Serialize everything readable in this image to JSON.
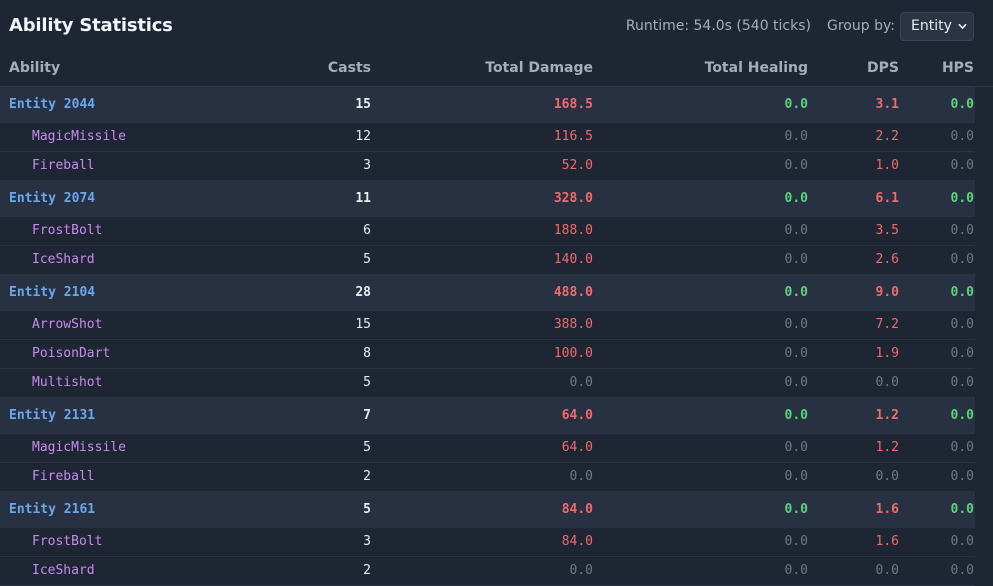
{
  "header": {
    "title": "Ability Statistics",
    "runtime": "Runtime: 54.0s (540 ticks)",
    "group_by_label": "Group by:",
    "group_by_value": "Entity"
  },
  "columns": {
    "ability": "Ability",
    "casts": "Casts",
    "total_damage": "Total Damage",
    "total_healing": "Total Healing",
    "dps": "DPS",
    "hps": "HPS"
  },
  "colors": {
    "entity_name": "#6aa7ee",
    "ability_name": "#c78bf0",
    "damage": "#ef6b6b",
    "healing": "#5cd37a",
    "zero": "#6e7785"
  },
  "rows": [
    {
      "type": "group",
      "name": "Entity 2044",
      "casts": "15",
      "damage": "168.5",
      "healing": "0.0",
      "dps": "3.1",
      "hps": "0.0"
    },
    {
      "type": "child",
      "name": "MagicMissile",
      "casts": "12",
      "damage": "116.5",
      "healing": "0.0",
      "dps": "2.2",
      "hps": "0.0"
    },
    {
      "type": "child",
      "name": "Fireball",
      "casts": "3",
      "damage": "52.0",
      "healing": "0.0",
      "dps": "1.0",
      "hps": "0.0"
    },
    {
      "type": "group",
      "name": "Entity 2074",
      "casts": "11",
      "damage": "328.0",
      "healing": "0.0",
      "dps": "6.1",
      "hps": "0.0"
    },
    {
      "type": "child",
      "name": "FrostBolt",
      "casts": "6",
      "damage": "188.0",
      "healing": "0.0",
      "dps": "3.5",
      "hps": "0.0"
    },
    {
      "type": "child",
      "name": "IceShard",
      "casts": "5",
      "damage": "140.0",
      "healing": "0.0",
      "dps": "2.6",
      "hps": "0.0"
    },
    {
      "type": "group",
      "name": "Entity 2104",
      "casts": "28",
      "damage": "488.0",
      "healing": "0.0",
      "dps": "9.0",
      "hps": "0.0"
    },
    {
      "type": "child",
      "name": "ArrowShot",
      "casts": "15",
      "damage": "388.0",
      "healing": "0.0",
      "dps": "7.2",
      "hps": "0.0"
    },
    {
      "type": "child",
      "name": "PoisonDart",
      "casts": "8",
      "damage": "100.0",
      "healing": "0.0",
      "dps": "1.9",
      "hps": "0.0"
    },
    {
      "type": "child",
      "name": "Multishot",
      "casts": "5",
      "damage": "0.0",
      "healing": "0.0",
      "dps": "0.0",
      "hps": "0.0"
    },
    {
      "type": "group",
      "name": "Entity 2131",
      "casts": "7",
      "damage": "64.0",
      "healing": "0.0",
      "dps": "1.2",
      "hps": "0.0"
    },
    {
      "type": "child",
      "name": "MagicMissile",
      "casts": "5",
      "damage": "64.0",
      "healing": "0.0",
      "dps": "1.2",
      "hps": "0.0"
    },
    {
      "type": "child",
      "name": "Fireball",
      "casts": "2",
      "damage": "0.0",
      "healing": "0.0",
      "dps": "0.0",
      "hps": "0.0"
    },
    {
      "type": "group",
      "name": "Entity 2161",
      "casts": "5",
      "damage": "84.0",
      "healing": "0.0",
      "dps": "1.6",
      "hps": "0.0"
    },
    {
      "type": "child",
      "name": "FrostBolt",
      "casts": "3",
      "damage": "84.0",
      "healing": "0.0",
      "dps": "1.6",
      "hps": "0.0"
    },
    {
      "type": "child",
      "name": "IceShard",
      "casts": "2",
      "damage": "0.0",
      "healing": "0.0",
      "dps": "0.0",
      "hps": "0.0"
    }
  ]
}
